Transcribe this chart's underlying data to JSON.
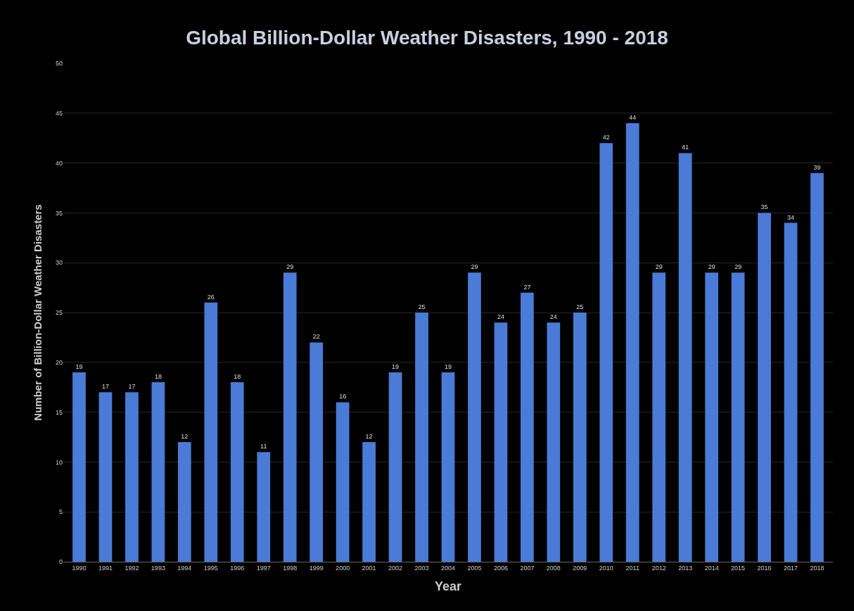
{
  "chart_data": {
    "type": "bar",
    "title": "Global Billion-Dollar Weather Disasters, 1990 - 2018",
    "xlabel": "Year",
    "ylabel": "Number of Billion-Dollar Weather Disasters",
    "categories": [
      "1990",
      "1991",
      "1992",
      "1993",
      "1994",
      "1995",
      "1996",
      "1997",
      "1998",
      "1999",
      "2000",
      "2001",
      "2002",
      "2003",
      "2004",
      "2005",
      "2006",
      "2007",
      "2008",
      "2009",
      "2010",
      "2011",
      "2012",
      "2013",
      "2014",
      "2015",
      "2016",
      "2017",
      "2018"
    ],
    "values": [
      19,
      17,
      17,
      18,
      12,
      26,
      18,
      11,
      29,
      22,
      16,
      12,
      19,
      25,
      19,
      29,
      24,
      27,
      24,
      25,
      42,
      44,
      29,
      41,
      29,
      29,
      35,
      34,
      39
    ],
    "color": "#4a7bd6",
    "ylim": [
      0,
      50
    ],
    "yticks": [
      0,
      5,
      10,
      15,
      20,
      25,
      30,
      35,
      40,
      45,
      50
    ],
    "grid": "y",
    "data_labels": true
  }
}
